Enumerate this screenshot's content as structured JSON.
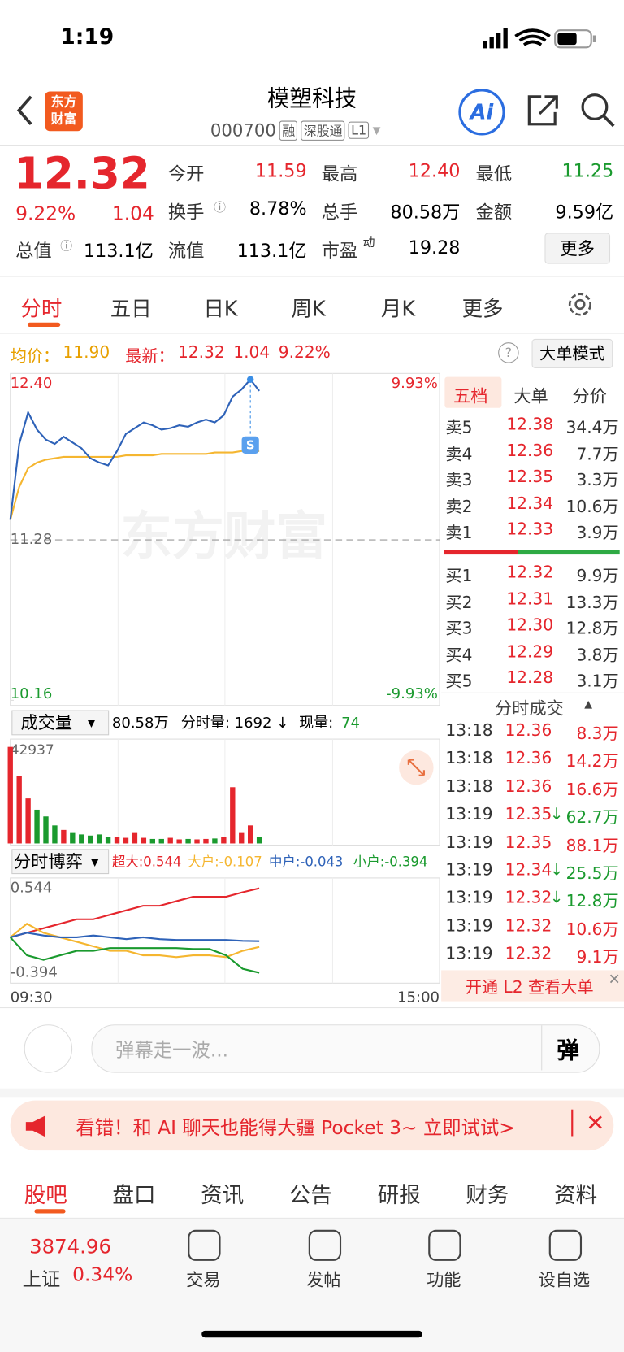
{
  "status": {
    "time": "1:19"
  },
  "header": {
    "logo": [
      "东方",
      "财富"
    ],
    "title": "模塑科技",
    "code": "000700",
    "tags": [
      "融",
      "深股通",
      "L1"
    ],
    "ai": "Ai"
  },
  "quote": {
    "price": "12.32",
    "percent": "9.22%",
    "change": "1.04",
    "more": "更多",
    "fields": [
      {
        "label": "今开",
        "value": "11.59"
      },
      {
        "label": "最高",
        "value": "12.40"
      },
      {
        "label": "最低",
        "value": "11.25"
      },
      {
        "label": "换手",
        "value": "8.78%"
      },
      {
        "label": "总手",
        "value": "80.58万"
      },
      {
        "label": "金额",
        "value": "9.59亿"
      },
      {
        "label": "总值",
        "value": "113.1亿"
      },
      {
        "label": "流值",
        "value": "113.1亿"
      },
      {
        "label": "市盈",
        "sup": "动",
        "value": "19.28"
      }
    ]
  },
  "tabs": [
    "分时",
    "五日",
    "日K",
    "周K",
    "月K",
    "更多"
  ],
  "info": {
    "avg_label": "均价：",
    "avg": "11.90",
    "last_label": "最新：",
    "last": "12.32",
    "change": "1.04",
    "percent": "9.22%",
    "help": "?",
    "mode": "大单模式"
  },
  "price_chart": {
    "ylim": [
      10.16,
      12.4
    ],
    "yticks": [
      {
        "value": 12.4,
        "label": "12.40"
      },
      {
        "value": 11.28,
        "label": "11.28"
      },
      {
        "value": 10.16,
        "label": "10.16"
      }
    ],
    "pct_labels": [
      "9.93%",
      "-9.93%"
    ],
    "watermark": "东方财富",
    "marker": "S",
    "price": {
      "color": "#2e62b8",
      "values": [
        11.42,
        11.95,
        12.17,
        12.05,
        11.98,
        11.95,
        12.0,
        11.96,
        11.92,
        11.85,
        11.82,
        11.8,
        11.9,
        12.02,
        12.06,
        12.1,
        12.08,
        12.05,
        12.06,
        12.08,
        12.07,
        12.1,
        12.12,
        12.1,
        12.15,
        12.28,
        12.33,
        12.4,
        12.32
      ]
    },
    "avg": {
      "color": "#f5b630",
      "values": [
        11.42,
        11.65,
        11.78,
        11.82,
        11.84,
        11.85,
        11.86,
        11.86,
        11.86,
        11.86,
        11.86,
        11.86,
        11.86,
        11.87,
        11.87,
        11.87,
        11.87,
        11.88,
        11.88,
        11.88,
        11.88,
        11.88,
        11.88,
        11.89,
        11.89,
        11.89,
        11.9,
        11.9,
        11.9
      ]
    }
  },
  "volume": {
    "title": "成交量",
    "total": "80.58万",
    "minute": "分时量: 1692 ↓",
    "now_label": "现量:",
    "now": "74",
    "ymax": 42937,
    "values": [
      42937,
      30000,
      20000,
      15000,
      12000,
      8000,
      6000,
      5000,
      4000,
      3500,
      4000,
      3000,
      3000,
      2500,
      5000,
      2500,
      2000,
      2000,
      2500,
      1800,
      2000,
      1800,
      2000,
      2200,
      3000,
      25000,
      5000,
      8000,
      3000
    ]
  },
  "flow": {
    "title": "分时博弈",
    "ylim": [
      -0.394,
      0.544
    ],
    "yticks": [
      0.544,
      -0.394
    ],
    "xlabels": [
      "09:30",
      "15:00"
    ],
    "series": [
      {
        "legend": "超大:0.544",
        "color": "#e5262d",
        "values": [
          0,
          0.05,
          0.1,
          0.15,
          0.2,
          0.2,
          0.25,
          0.3,
          0.35,
          0.35,
          0.4,
          0.45,
          0.45,
          0.45,
          0.5,
          0.544
        ]
      },
      {
        "legend": "大户:-0.107",
        "color": "#f5b630",
        "values": [
          0,
          0.15,
          0.05,
          0,
          -0.05,
          -0.1,
          -0.15,
          -0.15,
          -0.2,
          -0.2,
          -0.22,
          -0.2,
          -0.2,
          -0.22,
          -0.15,
          -0.107
        ]
      },
      {
        "legend": "中户:-0.043",
        "color": "#2e62b8",
        "values": [
          0,
          0.05,
          0.02,
          0,
          0,
          0.02,
          0,
          -0.02,
          0,
          -0.02,
          -0.03,
          -0.03,
          -0.03,
          -0.03,
          -0.04,
          -0.043
        ]
      },
      {
        "legend": "小户:-0.394",
        "color": "#1a9a2e",
        "values": [
          0,
          -0.2,
          -0.25,
          -0.2,
          -0.15,
          -0.15,
          -0.12,
          -0.12,
          -0.12,
          -0.12,
          -0.12,
          -0.13,
          -0.13,
          -0.2,
          -0.35,
          -0.394
        ]
      }
    ]
  },
  "orderbook": {
    "tabs": [
      "五档",
      "大单",
      "分价"
    ],
    "asks": [
      {
        "label": "卖5",
        "price": "12.38",
        "volume": "34.4万"
      },
      {
        "label": "卖4",
        "price": "12.36",
        "volume": "7.7万"
      },
      {
        "label": "卖3",
        "price": "12.35",
        "volume": "3.3万"
      },
      {
        "label": "卖2",
        "price": "12.34",
        "volume": "10.6万"
      },
      {
        "label": "卖1",
        "price": "12.33",
        "volume": "3.9万"
      }
    ],
    "bids": [
      {
        "label": "买1",
        "price": "12.32",
        "volume": "9.9万"
      },
      {
        "label": "买2",
        "price": "12.31",
        "volume": "13.3万"
      },
      {
        "label": "买3",
        "price": "12.30",
        "volume": "12.8万"
      },
      {
        "label": "买4",
        "price": "12.29",
        "volume": "3.8万"
      },
      {
        "label": "买5",
        "price": "12.28",
        "volume": "3.1万"
      }
    ]
  },
  "trades": {
    "title": "分时成交",
    "banner": "开通 L2 查看大单",
    "rows": [
      {
        "time": "13:18",
        "price": "12.36",
        "volume": "8.3万",
        "color": "#e5262d"
      },
      {
        "time": "13:18",
        "price": "12.36",
        "volume": "14.2万",
        "color": "#e5262d"
      },
      {
        "time": "13:18",
        "price": "12.36",
        "volume": "16.6万",
        "color": "#e5262d"
      },
      {
        "time": "13:19",
        "price": "12.35",
        "arrow": "↓",
        "volume": "62.7万",
        "color": "#1a9a2e"
      },
      {
        "time": "13:19",
        "price": "12.35",
        "volume": "88.1万",
        "color": "#e5262d"
      },
      {
        "time": "13:19",
        "price": "12.34",
        "arrow": "↓",
        "volume": "25.5万",
        "color": "#1a9a2e"
      },
      {
        "time": "13:19",
        "price": "12.32",
        "arrow": "↓",
        "volume": "12.8万",
        "color": "#1a9a2e"
      },
      {
        "time": "13:19",
        "price": "12.32",
        "volume": "10.6万",
        "color": "#e5262d"
      },
      {
        "time": "13:19",
        "price": "12.32",
        "volume": "9.1万",
        "color": "#e5262d"
      }
    ]
  },
  "comment": {
    "placeholder": "弹幕走一波...",
    "button": "弹"
  },
  "ad": {
    "text": "看错！和 AI 聊天也能得大疆 Pocket 3~ 立即试试>"
  },
  "subtabs": [
    "股吧",
    "盘口",
    "资讯",
    "公告",
    "研报",
    "财务",
    "资料"
  ],
  "bottom": {
    "index": "3874.96",
    "name": "上证",
    "percent": "0.34%",
    "items": [
      "交易",
      "发帖",
      "功能",
      "设自选"
    ]
  }
}
